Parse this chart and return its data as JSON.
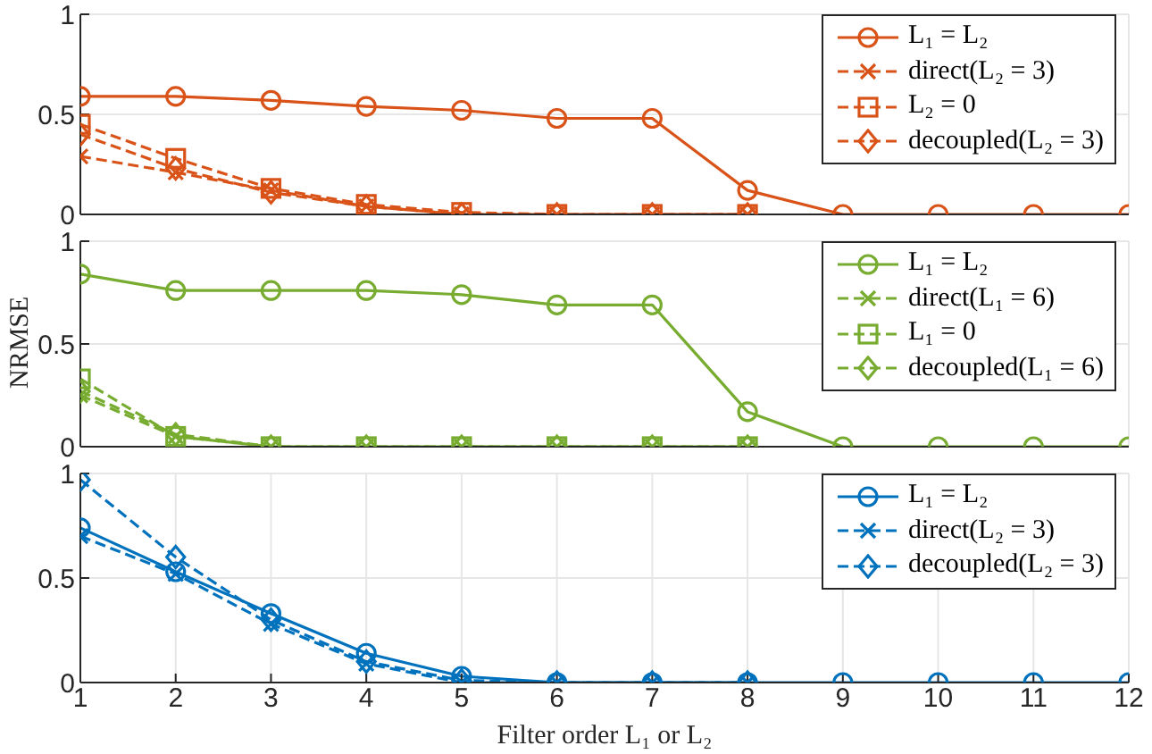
{
  "chart_data": [
    {
      "type": "line",
      "x": [
        1,
        2,
        3,
        4,
        5,
        6,
        7,
        8,
        9,
        10,
        11,
        12
      ],
      "xlim": [
        1,
        12
      ],
      "xticks": [
        1,
        2,
        3,
        4,
        5,
        6,
        7,
        8,
        9,
        10,
        11,
        12
      ],
      "ylim": [
        0,
        1
      ],
      "yticks": [
        0,
        0.5,
        1
      ],
      "grid": true,
      "legend": "top right",
      "tick_labels": "y",
      "series": [
        {
          "name": "L₁ = L₂",
          "color": "#d95319",
          "marker": "circle",
          "line_style": "solid",
          "values": [
            0.59,
            0.59,
            0.57,
            0.54,
            0.52,
            0.48,
            0.48,
            0.12,
            0,
            0,
            0,
            0
          ]
        },
        {
          "name": "direct(L₂ = 3)",
          "color": "#d95319",
          "marker": "cross",
          "line_style": "dashed",
          "x": [
            1,
            2,
            3,
            4,
            5,
            6,
            7,
            8
          ],
          "values": [
            0.29,
            0.21,
            0.12,
            0.04,
            0,
            0,
            0,
            0
          ]
        },
        {
          "name": "L₂ = 0",
          "color": "#d95319",
          "marker": "square",
          "line_style": "dashed",
          "x": [
            1,
            2,
            3,
            4,
            5,
            6,
            7,
            8
          ],
          "values": [
            0.45,
            0.28,
            0.13,
            0.05,
            0.01,
            0,
            0,
            0
          ]
        },
        {
          "name": "decoupled(L₂ = 3)",
          "color": "#d95319",
          "marker": "diamond",
          "line_style": "dashed",
          "x": [
            1,
            2,
            3,
            4,
            5,
            6,
            7,
            8
          ],
          "values": [
            0.4,
            0.23,
            0.11,
            0.04,
            0,
            0,
            0,
            0
          ]
        }
      ]
    },
    {
      "type": "line",
      "x": [
        1,
        2,
        3,
        4,
        5,
        6,
        7,
        8,
        9,
        10,
        11,
        12
      ],
      "xlim": [
        1,
        12
      ],
      "xticks": [
        1,
        2,
        3,
        4,
        5,
        6,
        7,
        8,
        9,
        10,
        11,
        12
      ],
      "ylim": [
        0,
        1
      ],
      "yticks": [
        0,
        0.5,
        1
      ],
      "grid": true,
      "legend": "top right",
      "tick_labels": "y",
      "ylabel": "NRMSE",
      "series": [
        {
          "name": "L₁ = L₂",
          "color": "#77ac30",
          "marker": "circle",
          "line_style": "solid",
          "values": [
            0.84,
            0.76,
            0.76,
            0.76,
            0.74,
            0.69,
            0.69,
            0.17,
            0,
            0,
            0,
            0
          ]
        },
        {
          "name": "direct(L₁ = 6)",
          "color": "#77ac30",
          "marker": "cross",
          "line_style": "dashed",
          "x": [
            1,
            2,
            3,
            4,
            5,
            6,
            7,
            8
          ],
          "values": [
            0.25,
            0.05,
            0,
            0,
            0,
            0,
            0,
            0
          ]
        },
        {
          "name": "L₁ = 0",
          "color": "#77ac30",
          "marker": "square",
          "line_style": "dashed",
          "x": [
            1,
            2,
            3,
            4,
            5,
            6,
            7,
            8
          ],
          "values": [
            0.33,
            0.05,
            0,
            0,
            0,
            0,
            0,
            0
          ]
        },
        {
          "name": "decoupled(L₁ = 6)",
          "color": "#77ac30",
          "marker": "diamond",
          "line_style": "dashed",
          "x": [
            1,
            2,
            3,
            4,
            5,
            6,
            7,
            8
          ],
          "values": [
            0.27,
            0.06,
            0,
            0,
            0,
            0,
            0,
            0
          ]
        }
      ]
    },
    {
      "type": "line",
      "x": [
        1,
        2,
        3,
        4,
        5,
        6,
        7,
        8,
        9,
        10,
        11,
        12
      ],
      "xlim": [
        1,
        12
      ],
      "xticks": [
        1,
        2,
        3,
        4,
        5,
        6,
        7,
        8,
        9,
        10,
        11,
        12
      ],
      "ylim": [
        0,
        1
      ],
      "yticks": [
        0,
        0.5,
        1
      ],
      "grid": true,
      "legend": "top right",
      "xlabel": "Filter order L₁ or L₂",
      "series": [
        {
          "name": "L₁ = L₂",
          "color": "#0072bd",
          "marker": "circle",
          "line_style": "solid",
          "values": [
            0.74,
            0.53,
            0.33,
            0.14,
            0.03,
            0,
            0,
            0,
            0,
            0,
            0,
            0
          ]
        },
        {
          "name": "direct(L₂ = 3)",
          "color": "#0072bd",
          "marker": "cross",
          "line_style": "dashed",
          "x": [
            1,
            2,
            3,
            4,
            5,
            6,
            7,
            8
          ],
          "values": [
            0.7,
            0.52,
            0.28,
            0.09,
            0,
            0,
            0,
            0
          ]
        },
        {
          "name": "decoupled(L₂ = 3)",
          "color": "#0072bd",
          "marker": "diamond",
          "line_style": "dashed",
          "x": [
            1,
            2,
            3,
            4,
            5,
            6,
            7,
            8
          ],
          "values": [
            0.97,
            0.6,
            0.3,
            0.1,
            0.01,
            0,
            0,
            0
          ]
        }
      ]
    }
  ]
}
